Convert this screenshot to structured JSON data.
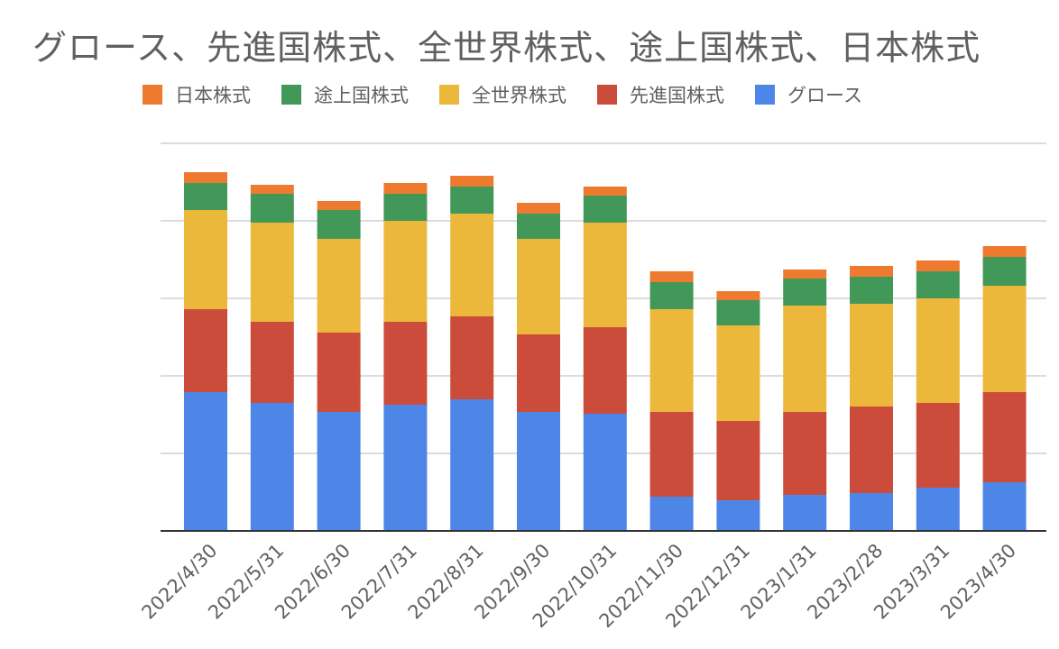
{
  "chart_data": {
    "type": "bar",
    "stacked": true,
    "title": "グロース、先進国株式、全世界株式、途上国株式、日本株式",
    "xlabel": "",
    "ylabel": "",
    "legend_position": "top",
    "grid": true,
    "categories": [
      "2022/4/30",
      "2022/5/31",
      "2022/6/30",
      "2022/7/31",
      "2022/8/31",
      "2022/9/30",
      "2022/10/31",
      "2022/11/30",
      "2022/12/31",
      "2023/1/31",
      "2023/2/28",
      "2023/3/31",
      "2023/4/30"
    ],
    "series": [
      {
        "name": "グロース",
        "color": "#4e86e8",
        "values": [
          154,
          142,
          132,
          140,
          146,
          132,
          130,
          38,
          34,
          40,
          42,
          48,
          54
        ]
      },
      {
        "name": "先進国株式",
        "color": "#cc4c3c",
        "values": [
          92,
          90,
          88,
          92,
          92,
          86,
          96,
          94,
          88,
          92,
          96,
          94,
          100
        ]
      },
      {
        "name": "全世界株式",
        "color": "#ecb83c",
        "values": [
          110,
          110,
          104,
          112,
          114,
          106,
          116,
          114,
          106,
          118,
          114,
          116,
          118
        ]
      },
      {
        "name": "途上国株式",
        "color": "#429858",
        "values": [
          30,
          32,
          32,
          30,
          30,
          28,
          30,
          30,
          28,
          30,
          30,
          30,
          32
        ]
      },
      {
        "name": "日本株式",
        "color": "#ee7a30",
        "values": [
          12,
          10,
          10,
          12,
          12,
          12,
          10,
          12,
          10,
          10,
          12,
          12,
          12
        ]
      }
    ],
    "legend_order": [
      "日本株式",
      "途上国株式",
      "全世界株式",
      "先進国株式",
      "グロース"
    ],
    "ylim": [
      0,
      500
    ],
    "ytick_step": 86
  }
}
